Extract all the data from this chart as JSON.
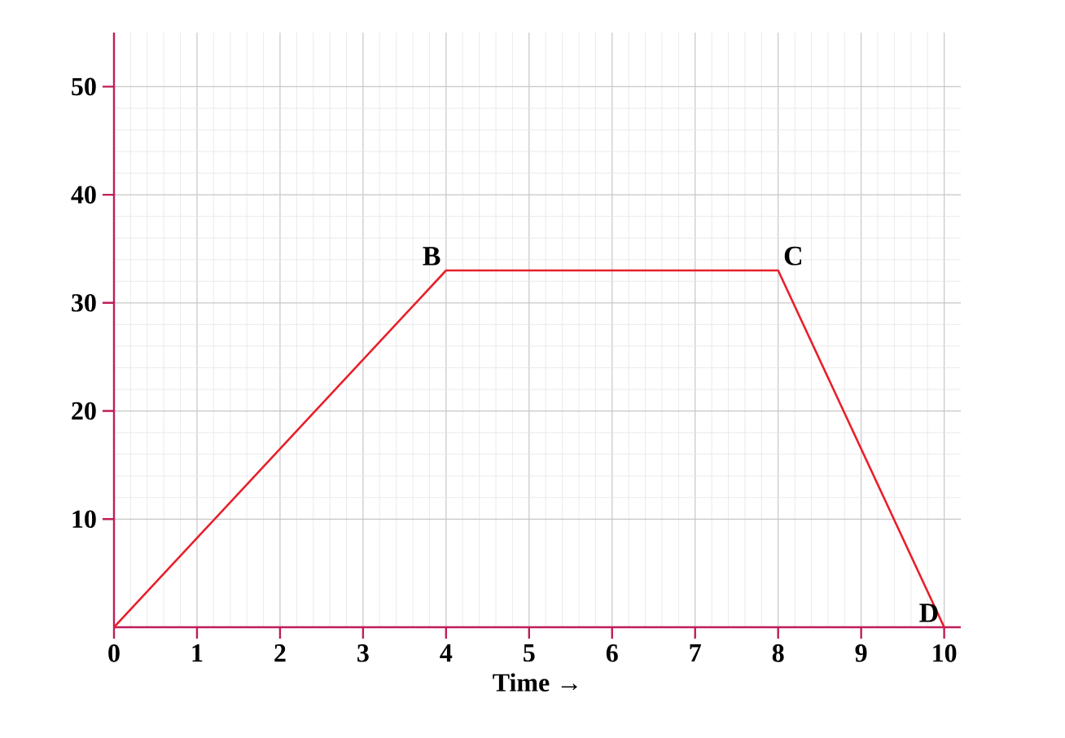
{
  "chart_data": {
    "type": "line",
    "xlabel": "Time →",
    "x": [
      0,
      4,
      8,
      10
    ],
    "series": [
      {
        "color": "#e8202a",
        "values": [
          0,
          33,
          33,
          0
        ]
      }
    ],
    "xlim": [
      0,
      10.2
    ],
    "ylim": [
      0,
      55
    ],
    "xticks": [
      0,
      1,
      2,
      3,
      4,
      5,
      6,
      7,
      8,
      9,
      10
    ],
    "yticks": [
      10,
      20,
      30,
      40,
      50
    ],
    "grid": true,
    "marker": "none",
    "line_style": "solid",
    "annotations": [
      {
        "text": "B",
        "x": 4,
        "y": 33
      },
      {
        "text": "C",
        "x": 8,
        "y": 33
      },
      {
        "text": "D",
        "x": 10,
        "y": 0
      }
    ]
  }
}
